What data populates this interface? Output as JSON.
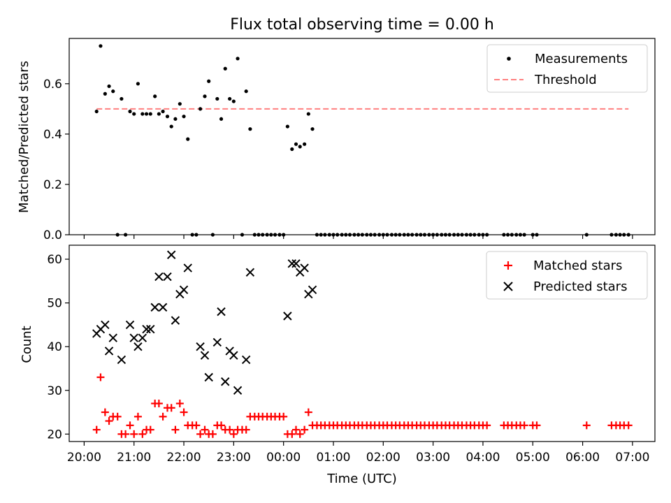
{
  "chart_data": [
    {
      "type": "scatter",
      "title": "Flux total observing time = 0.00 h",
      "xlabel": "",
      "ylabel": "Matched/Predicted stars",
      "ylim": [
        0,
        0.78
      ],
      "yticks": [
        0.0,
        0.2,
        0.4,
        0.6
      ],
      "ytick_labels": [
        "0.0",
        "0.2",
        "0.4",
        "0.6"
      ],
      "x_unit": "hours since 20:00 UTC",
      "xlim": [
        -0.3,
        11.45
      ],
      "grid": false,
      "legend_position": "top-right",
      "series": [
        {
          "name": "Measurements",
          "marker": "dot",
          "color": "#000000",
          "x": [
            0.25,
            0.33,
            0.42,
            0.5,
            0.58,
            0.67,
            0.75,
            0.83,
            0.92,
            1.0,
            1.08,
            1.17,
            1.25,
            1.33,
            1.42,
            1.5,
            1.58,
            1.67,
            1.75,
            1.83,
            1.92,
            2.0,
            2.08,
            2.17,
            2.25,
            2.33,
            2.42,
            2.5,
            2.58,
            2.67,
            2.75,
            2.83,
            2.92,
            3.0,
            3.08,
            3.17,
            3.25,
            3.33,
            3.42,
            3.5,
            3.58,
            3.67,
            3.75,
            3.83,
            3.92,
            4.0,
            4.08,
            4.17,
            4.25,
            4.33,
            4.42,
            4.5,
            4.58,
            4.67,
            4.75,
            4.83,
            4.92,
            5.0,
            5.08,
            5.17,
            5.25,
            5.33,
            5.42,
            5.5,
            5.58,
            5.67,
            5.75,
            5.83,
            5.92,
            6.0,
            6.08,
            6.17,
            6.25,
            6.33,
            6.42,
            6.5,
            6.58,
            6.67,
            6.75,
            6.83,
            6.92,
            7.0,
            7.08,
            7.17,
            7.25,
            7.33,
            7.42,
            7.5,
            7.58,
            7.67,
            7.75,
            7.83,
            7.92,
            8.0,
            8.08,
            8.42,
            8.5,
            8.58,
            8.67,
            8.75,
            8.83,
            9.0,
            9.08,
            10.08,
            10.58,
            10.67,
            10.75,
            10.83,
            10.92
          ],
          "y": [
            0.49,
            0.75,
            0.56,
            0.59,
            0.57,
            0.0,
            0.54,
            0.0,
            0.49,
            0.48,
            0.6,
            0.48,
            0.48,
            0.48,
            0.55,
            0.48,
            0.49,
            0.47,
            0.43,
            0.46,
            0.52,
            0.47,
            0.38,
            0.0,
            0.0,
            0.5,
            0.55,
            0.61,
            0.0,
            0.54,
            0.46,
            0.66,
            0.54,
            0.53,
            0.7,
            0.0,
            0.57,
            0.42,
            0.0,
            0.0,
            0.0,
            0.0,
            0.0,
            0.0,
            0.0,
            0.0,
            0.43,
            0.34,
            0.36,
            0.35,
            0.36,
            0.48,
            0.42,
            0.0,
            0.0,
            0.0,
            0.0,
            0.0,
            0.0,
            0.0,
            0.0,
            0.0,
            0.0,
            0.0,
            0.0,
            0.0,
            0.0,
            0.0,
            0.0,
            0.0,
            0.0,
            0.0,
            0.0,
            0.0,
            0.0,
            0.0,
            0.0,
            0.0,
            0.0,
            0.0,
            0.0,
            0.0,
            0.0,
            0.0,
            0.0,
            0.0,
            0.0,
            0.0,
            0.0,
            0.0,
            0.0,
            0.0,
            0.0,
            0.0,
            0.0,
            0.0,
            0.0,
            0.0,
            0.0,
            0.0,
            0.0,
            0.0,
            0.0,
            0.0,
            0.0,
            0.0,
            0.0,
            0.0,
            0.0
          ]
        },
        {
          "name": "Threshold",
          "style": "dashed",
          "color": "#ff7f7f",
          "x": [
            0.25,
            10.92
          ],
          "y": [
            0.5,
            0.5
          ]
        }
      ]
    },
    {
      "type": "scatter",
      "title": "",
      "xlabel": "Time (UTC)",
      "ylabel": "Count",
      "ylim": [
        18.3,
        63.2
      ],
      "yticks": [
        20,
        30,
        40,
        50,
        60
      ],
      "ytick_labels": [
        "20",
        "30",
        "40",
        "50",
        "60"
      ],
      "x_unit": "hours since 20:00 UTC",
      "xlim": [
        -0.3,
        11.45
      ],
      "xticks": [
        0,
        1,
        2,
        3,
        4,
        5,
        6,
        7,
        8,
        9,
        10,
        11
      ],
      "xtick_labels": [
        "20:00",
        "21:00",
        "22:00",
        "23:00",
        "00:00",
        "01:00",
        "02:00",
        "03:00",
        "04:00",
        "05:00",
        "06:00",
        "07:00"
      ],
      "grid": false,
      "legend_position": "top-right",
      "series": [
        {
          "name": "Matched stars",
          "marker": "plus",
          "color": "#ff0000",
          "x": [
            0.25,
            0.33,
            0.42,
            0.5,
            0.58,
            0.67,
            0.75,
            0.83,
            0.92,
            1.0,
            1.08,
            1.17,
            1.25,
            1.33,
            1.42,
            1.5,
            1.58,
            1.67,
            1.75,
            1.83,
            1.92,
            2.0,
            2.08,
            2.17,
            2.25,
            2.33,
            2.42,
            2.5,
            2.58,
            2.67,
            2.75,
            2.83,
            2.92,
            3.0,
            3.08,
            3.17,
            3.25,
            3.33,
            3.42,
            3.5,
            3.58,
            3.67,
            3.75,
            3.83,
            3.92,
            4.0,
            4.08,
            4.17,
            4.25,
            4.33,
            4.42,
            4.5,
            4.58,
            4.67,
            4.75,
            4.83,
            4.92,
            5.0,
            5.08,
            5.17,
            5.25,
            5.33,
            5.42,
            5.5,
            5.58,
            5.67,
            5.75,
            5.83,
            5.92,
            6.0,
            6.08,
            6.17,
            6.25,
            6.33,
            6.42,
            6.5,
            6.58,
            6.67,
            6.75,
            6.83,
            6.92,
            7.0,
            7.08,
            7.17,
            7.25,
            7.33,
            7.42,
            7.5,
            7.58,
            7.67,
            7.75,
            7.83,
            7.92,
            8.0,
            8.08,
            8.42,
            8.5,
            8.58,
            8.67,
            8.75,
            8.83,
            9.0,
            9.08,
            10.08,
            10.58,
            10.67,
            10.75,
            10.83,
            10.92
          ],
          "y": [
            21,
            33,
            25,
            23,
            24,
            24,
            20,
            20,
            22,
            20,
            24,
            20,
            21,
            21,
            27,
            27,
            24,
            26,
            26,
            21,
            27,
            25,
            22,
            22,
            22,
            20,
            21,
            20,
            20,
            22,
            22,
            21,
            21,
            20,
            21,
            21,
            21,
            24,
            24,
            24,
            24,
            24,
            24,
            24,
            24,
            24,
            20,
            20,
            21,
            20,
            21,
            25,
            22,
            22,
            22,
            22,
            22,
            22,
            22,
            22,
            22,
            22,
            22,
            22,
            22,
            22,
            22,
            22,
            22,
            22,
            22,
            22,
            22,
            22,
            22,
            22,
            22,
            22,
            22,
            22,
            22,
            22,
            22,
            22,
            22,
            22,
            22,
            22,
            22,
            22,
            22,
            22,
            22,
            22,
            22,
            22,
            22,
            22,
            22,
            22,
            22,
            22,
            22,
            22,
            22,
            22,
            22,
            22,
            22
          ]
        },
        {
          "name": "Predicted stars",
          "marker": "x",
          "color": "#000000",
          "x": [
            0.25,
            0.33,
            0.42,
            0.5,
            0.58,
            0.75,
            0.92,
            1.0,
            1.08,
            1.17,
            1.25,
            1.33,
            1.42,
            1.5,
            1.58,
            1.67,
            1.75,
            1.83,
            1.92,
            2.0,
            2.08,
            2.33,
            2.42,
            2.5,
            2.67,
            2.75,
            2.83,
            2.92,
            3.0,
            3.08,
            3.25,
            3.33,
            4.08,
            4.17,
            4.25,
            4.33,
            4.42,
            4.5,
            4.58
          ],
          "y": [
            43,
            44,
            45,
            39,
            42,
            37,
            45,
            42,
            40,
            42,
            44,
            44,
            49,
            56,
            49,
            56,
            61,
            46,
            52,
            53,
            58,
            40,
            38,
            33,
            41,
            48,
            32,
            39,
            38,
            30,
            37,
            57,
            47,
            59,
            59,
            57,
            58,
            52,
            53
          ]
        }
      ]
    }
  ]
}
